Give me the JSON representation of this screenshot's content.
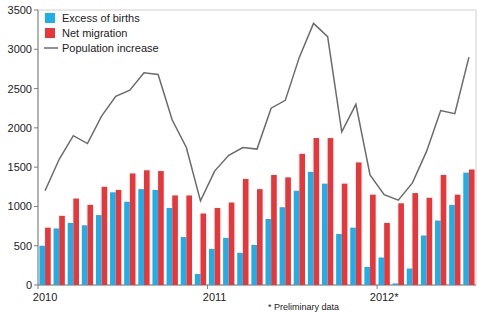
{
  "chart_data": {
    "type": "bar",
    "categories": [
      "2010",
      null,
      null,
      null,
      null,
      null,
      null,
      null,
      null,
      null,
      null,
      null,
      "2011",
      null,
      null,
      null,
      null,
      null,
      null,
      null,
      null,
      null,
      null,
      null,
      "2012*",
      null,
      null,
      null,
      null,
      null,
      null
    ],
    "series": [
      {
        "name": "Excess of births",
        "color": "#1eaee8",
        "type": "bar",
        "values": [
          500,
          720,
          790,
          760,
          890,
          1180,
          1060,
          1220,
          1210,
          980,
          610,
          140,
          460,
          600,
          410,
          510,
          840,
          990,
          1200,
          1440,
          1290,
          650,
          730,
          230,
          350,
          20,
          210,
          630,
          820,
          1020,
          1430
        ]
      },
      {
        "name": "Net migration",
        "color": "#e8373a",
        "type": "bar",
        "values": [
          730,
          880,
          1100,
          1020,
          1250,
          1210,
          1420,
          1460,
          1450,
          1140,
          1140,
          910,
          980,
          1050,
          1350,
          1220,
          1400,
          1370,
          1670,
          1870,
          1870,
          1290,
          1560,
          1150,
          790,
          1040,
          1170,
          1110,
          1400,
          1150,
          1470
        ]
      },
      {
        "name": "Population increase",
        "color": "#6b6b6b",
        "type": "line",
        "values": [
          1200,
          1600,
          1900,
          1800,
          2150,
          2400,
          2480,
          2700,
          2680,
          2100,
          1750,
          1070,
          1450,
          1650,
          1750,
          1730,
          2250,
          2350,
          2900,
          3330,
          3160,
          1950,
          2300,
          1400,
          1150,
          1080,
          1300,
          1700,
          2220,
          2180,
          2900
        ]
      }
    ],
    "ylim": [
      0,
      3500
    ],
    "yticks": [
      0,
      500,
      1000,
      1500,
      2000,
      2500,
      3000,
      3500
    ],
    "grid": false,
    "legend": "upper left",
    "annotations": [
      "* Preliminary data"
    ]
  }
}
